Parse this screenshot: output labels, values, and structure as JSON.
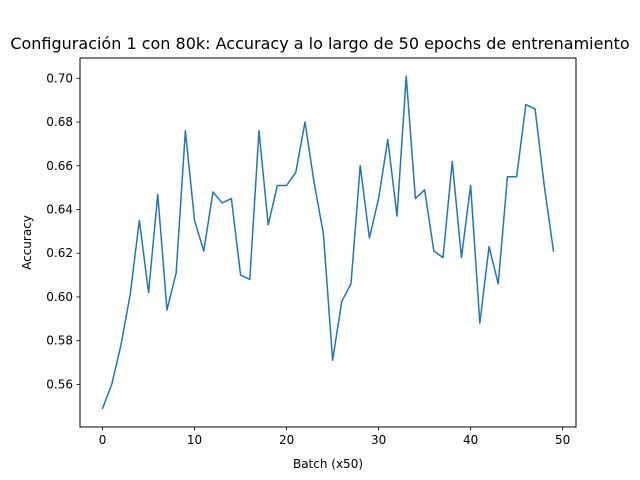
{
  "chart_data": {
    "type": "line",
    "title": "Configuración 1 con 80k: Accuracy a lo largo de 50 epochs de entrenamiento",
    "xlabel": "Batch (x50)",
    "ylabel": "Accuracy",
    "xlim": [
      -2.45,
      51.45
    ],
    "ylim": [
      0.5405,
      0.7093
    ],
    "x_ticks": [
      0,
      10,
      20,
      30,
      40,
      50
    ],
    "y_ticks": [
      0.56,
      0.58,
      0.6,
      0.62,
      0.64,
      0.66,
      0.68,
      0.7
    ],
    "x_tick_labels": [
      "0",
      "10",
      "20",
      "30",
      "40",
      "50"
    ],
    "y_tick_labels": [
      "0.56",
      "0.58",
      "0.60",
      "0.62",
      "0.64",
      "0.66",
      "0.68",
      "0.70"
    ],
    "grid": false,
    "color": "#1f77b4",
    "series": [
      {
        "name": "",
        "x": [
          0,
          1,
          2,
          3,
          4,
          5,
          6,
          7,
          8,
          9,
          10,
          11,
          12,
          13,
          14,
          15,
          16,
          17,
          18,
          19,
          20,
          21,
          22,
          23,
          24,
          25,
          26,
          27,
          28,
          29,
          30,
          31,
          32,
          33,
          34,
          35,
          36,
          37,
          38,
          39,
          40,
          41,
          42,
          43,
          44,
          45,
          46,
          47,
          48,
          49
        ],
        "values": [
          0.549,
          0.56,
          0.578,
          0.601,
          0.635,
          0.602,
          0.647,
          0.594,
          0.611,
          0.676,
          0.635,
          0.621,
          0.648,
          0.643,
          0.645,
          0.61,
          0.608,
          0.676,
          0.633,
          0.651,
          0.651,
          0.657,
          0.68,
          0.652,
          0.629,
          0.571,
          0.598,
          0.606,
          0.66,
          0.627,
          0.645,
          0.672,
          0.637,
          0.701,
          0.645,
          0.649,
          0.621,
          0.618,
          0.662,
          0.618,
          0.651,
          0.588,
          0.623,
          0.606,
          0.655,
          0.655,
          0.688,
          0.686,
          0.651,
          0.621
        ]
      }
    ]
  }
}
